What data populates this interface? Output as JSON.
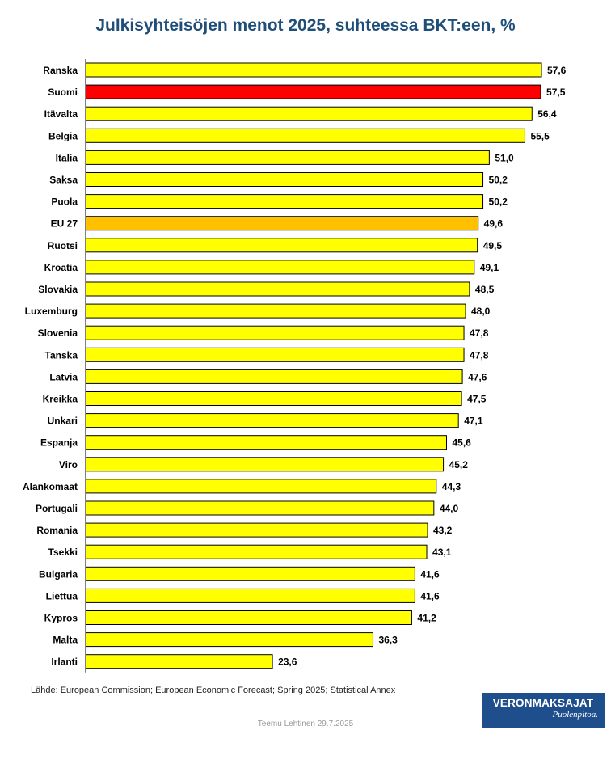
{
  "chart_data": {
    "type": "bar",
    "orientation": "horizontal",
    "title": "Julkisyhteisöjen menot 2025, suhteessa BKT:een, %",
    "categories": [
      "Ranska",
      "Suomi",
      "Itävalta",
      "Belgia",
      "Italia",
      "Saksa",
      "Puola",
      "EU 27",
      "Ruotsi",
      "Kroatia",
      "Slovakia",
      "Luxemburg",
      "Slovenia",
      "Tanska",
      "Latvia",
      "Kreikka",
      "Unkari",
      "Espanja",
      "Viro",
      "Alankomaat",
      "Portugali",
      "Romania",
      "Tsekki",
      "Bulgaria",
      "Liettua",
      "Kypros",
      "Malta",
      "Irlanti"
    ],
    "values": [
      57.6,
      57.5,
      56.4,
      55.5,
      51.0,
      50.2,
      50.2,
      49.6,
      49.5,
      49.1,
      48.5,
      48.0,
      47.8,
      47.8,
      47.6,
      47.5,
      47.1,
      45.6,
      45.2,
      44.3,
      44.0,
      43.2,
      43.1,
      41.6,
      41.6,
      41.2,
      36.3,
      23.6
    ],
    "value_labels": [
      "57,6",
      "57,5",
      "56,4",
      "55,5",
      "51,0",
      "50,2",
      "50,2",
      "49,6",
      "49,5",
      "49,1",
      "48,5",
      "48,0",
      "47,8",
      "47,8",
      "47,6",
      "47,5",
      "47,1",
      "45,6",
      "45,2",
      "44,3",
      "44,0",
      "43,2",
      "43,1",
      "41,6",
      "41,6",
      "41,2",
      "36,3",
      "23,6"
    ],
    "highlight": {
      "Suomi": "#ff0000",
      "EU 27": "#ffc000"
    },
    "default_color": "#ffff00",
    "xlim": [
      0,
      57.6
    ],
    "grid": false,
    "legend": "none"
  },
  "source_note": "Lähde: European Commission; European Economic Forecast; Spring 2025; Statistical Annex",
  "author_note": "Teemu Lehtinen  29.7.2025",
  "logo": {
    "name": "VERONMAKSAJAT",
    "tagline": "Puolenpitoa."
  },
  "colors": {
    "title": "#1f4e79",
    "logo_bg": "#1f4e8c"
  }
}
